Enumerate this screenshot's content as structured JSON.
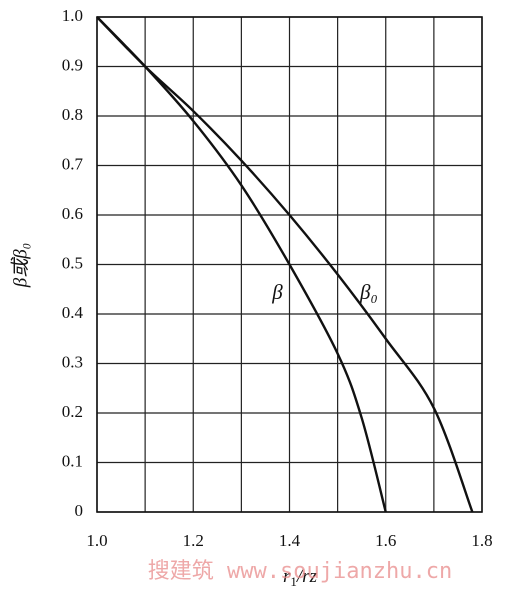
{
  "chart_data": {
    "type": "line",
    "x_label": [
      "r",
      "1",
      "/r",
      "z"
    ],
    "y_label": "β或β₀",
    "xlim": [
      1,
      1.8
    ],
    "xticks": [
      {
        "value": 1,
        "label": "1.0"
      },
      1.2,
      1.4,
      1.6,
      1.8
    ],
    "x_minor_grid": [
      1.1,
      1.3,
      1.5,
      1.7
    ],
    "ylim": [
      0,
      1
    ],
    "yticks": [
      0,
      0.1,
      0.2,
      0.3,
      0.4,
      0.5,
      0.6,
      0.7,
      0.8,
      0.9,
      {
        "value": 1,
        "label": "1.0"
      }
    ],
    "grid": true,
    "series": [
      {
        "name": "β",
        "color": "#111111",
        "x": [
          1.0,
          1.1,
          1.2,
          1.3,
          1.4,
          1.5,
          1.55,
          1.6
        ],
        "values": [
          1.0,
          0.9,
          0.79,
          0.66,
          0.5,
          0.32,
          0.19,
          0
        ]
      },
      {
        "name": "β₀",
        "color": "#111111",
        "x": [
          1.0,
          1.1,
          1.2,
          1.3,
          1.4,
          1.5,
          1.6,
          1.7,
          1.78
        ],
        "values": [
          1.0,
          0.9,
          0.81,
          0.71,
          0.6,
          0.48,
          0.35,
          0.21,
          0
        ]
      }
    ],
    "watermark": "搜建筑 www.soujianzhu.cn"
  }
}
